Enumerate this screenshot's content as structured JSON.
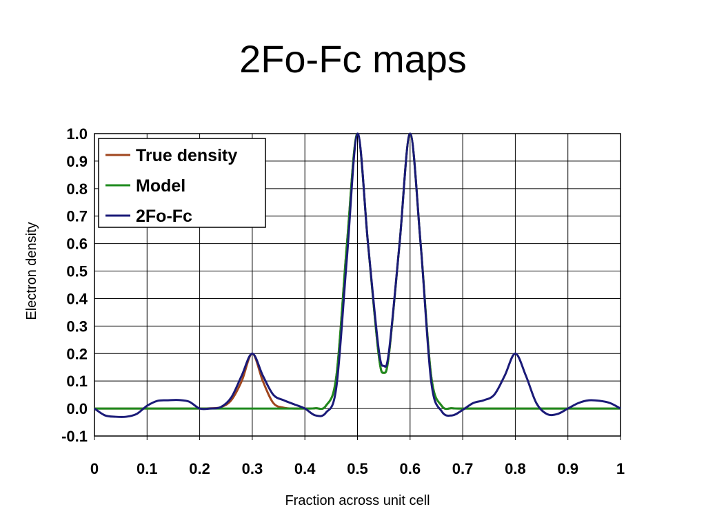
{
  "slide": {
    "title": "2Fo-Fc maps"
  },
  "chart_data": {
    "type": "line",
    "title": "",
    "xlabel": "Fraction across unit cell",
    "ylabel": "Electron density",
    "xlim": [
      0,
      1
    ],
    "ylim": [
      -0.1,
      1.0
    ],
    "x_ticks": [
      "0",
      "0.1",
      "0.2",
      "0.3",
      "0.4",
      "0.5",
      "0.6",
      "0.7",
      "0.8",
      "0.9",
      "1"
    ],
    "y_ticks": [
      "1.0",
      "0.9",
      "0.8",
      "0.7",
      "0.6",
      "0.5",
      "0.4",
      "0.3",
      "0.2",
      "0.1",
      "0.0",
      "-0.1"
    ],
    "grid": true,
    "legend_position": "top-left",
    "x": [
      0,
      0.02,
      0.04,
      0.06,
      0.08,
      0.1,
      0.12,
      0.14,
      0.16,
      0.18,
      0.2,
      0.22,
      0.24,
      0.26,
      0.28,
      0.3,
      0.32,
      0.34,
      0.36,
      0.38,
      0.4,
      0.42,
      0.44,
      0.46,
      0.48,
      0.5,
      0.52,
      0.54,
      0.55,
      0.56,
      0.58,
      0.6,
      0.62,
      0.64,
      0.66,
      0.68,
      0.7,
      0.72,
      0.74,
      0.76,
      0.78,
      0.8,
      0.82,
      0.84,
      0.86,
      0.88,
      0.9,
      0.92,
      0.94,
      0.96,
      0.98,
      1.0
    ],
    "series": [
      {
        "name": "True density",
        "color": "#a0461e",
        "values": [
          0,
          0,
          0,
          0,
          0,
          0,
          0,
          0,
          0,
          0,
          0,
          0.001,
          0.005,
          0.03,
          0.1,
          0.2,
          0.1,
          0.02,
          0.003,
          0,
          0,
          0.001,
          0.01,
          0.12,
          0.6,
          1.0,
          0.6,
          0.2,
          0.13,
          0.2,
          0.6,
          1.0,
          0.6,
          0.12,
          0.01,
          0.001,
          0,
          0,
          0,
          0,
          0,
          0,
          0,
          0,
          0,
          0,
          0,
          0,
          0,
          0,
          0,
          0
        ]
      },
      {
        "name": "Model",
        "color": "#1e8a1e",
        "values": [
          0,
          0,
          0,
          0,
          0,
          0,
          0,
          0,
          0,
          0,
          0,
          0,
          0,
          0,
          0,
          0,
          0,
          0,
          0,
          0,
          0,
          0.001,
          0.01,
          0.12,
          0.6,
          1.0,
          0.6,
          0.2,
          0.13,
          0.2,
          0.6,
          1.0,
          0.6,
          0.12,
          0.01,
          0.001,
          0,
          0,
          0,
          0,
          0,
          0,
          0,
          0,
          0,
          0,
          0,
          0,
          0,
          0,
          0,
          0
        ]
      },
      {
        "name": "2Fo-Fc",
        "color": "#1a1a78",
        "values": [
          0,
          -0.025,
          -0.03,
          -0.03,
          -0.02,
          0.01,
          0.028,
          0.03,
          0.031,
          0.025,
          0,
          0,
          0.005,
          0.04,
          0.12,
          0.2,
          0.12,
          0.05,
          0.03,
          0.015,
          0,
          -0.025,
          -0.015,
          0.08,
          0.55,
          1.0,
          0.6,
          0.22,
          0.155,
          0.21,
          0.6,
          1.0,
          0.6,
          0.1,
          -0.01,
          -0.025,
          -0.005,
          0.02,
          0.03,
          0.05,
          0.12,
          0.2,
          0.12,
          0.02,
          -0.02,
          -0.02,
          0.0,
          0.02,
          0.03,
          0.028,
          0.02,
          0.0
        ]
      }
    ]
  }
}
